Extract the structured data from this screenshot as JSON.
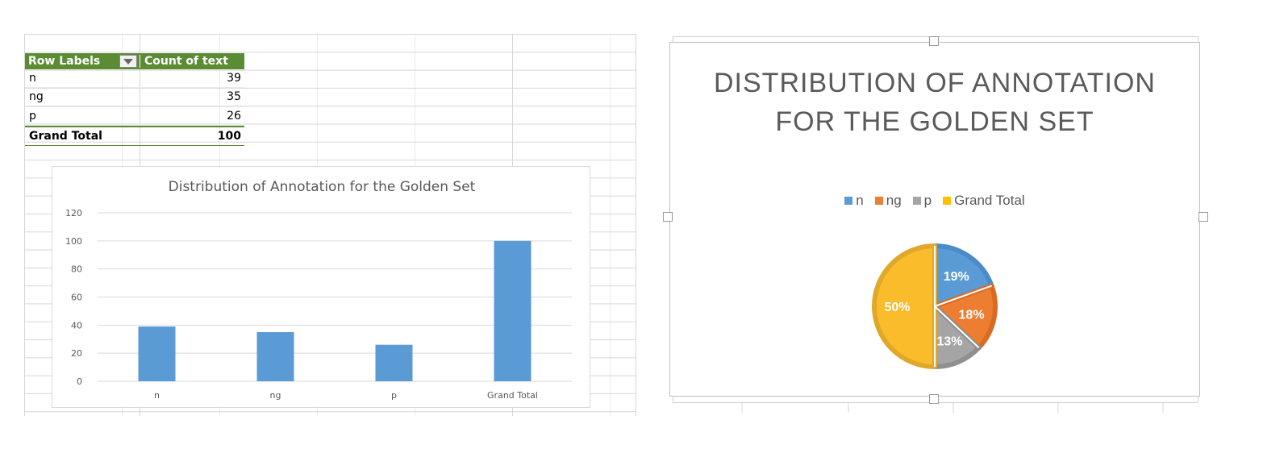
{
  "pivot": {
    "header": {
      "row_labels": "Row Labels",
      "count": "Count of text"
    },
    "rows": [
      {
        "label": "n",
        "value": "39"
      },
      {
        "label": "ng",
        "value": "35"
      },
      {
        "label": "p",
        "value": "26"
      }
    ],
    "total": {
      "label": "Grand Total",
      "value": "100"
    }
  },
  "colors": {
    "header_green": "#5b8b33",
    "bar": "#5b9bd5",
    "n": "#5b9bd5",
    "ng": "#ed7d31",
    "p": "#a5a5a5",
    "grand_total": "#ffc000"
  },
  "icons": [
    "dropdown-arrow-icon"
  ],
  "chart_data": [
    {
      "type": "bar",
      "title": "Distribution of Annotation for the Golden Set",
      "categories": [
        "n",
        "ng",
        "p",
        "Grand Total"
      ],
      "values": [
        39,
        35,
        26,
        100
      ],
      "ylim": [
        0,
        120
      ],
      "yticks": [
        0,
        20,
        40,
        60,
        80,
        100,
        120
      ],
      "grid": true,
      "xlabel": "",
      "ylabel": ""
    },
    {
      "type": "pie",
      "title": "DISTRIBUTION OF ANNOTATION FOR THE GOLDEN SET",
      "title_lines": [
        "DISTRIBUTION OF ANNOTATION",
        "FOR THE GOLDEN SET"
      ],
      "categories": [
        "n",
        "ng",
        "p",
        "Grand Total"
      ],
      "values": [
        39,
        35,
        26,
        100
      ],
      "data_labels": [
        "19%",
        "18%",
        "13%",
        "50%"
      ],
      "legend_position": "top"
    }
  ]
}
